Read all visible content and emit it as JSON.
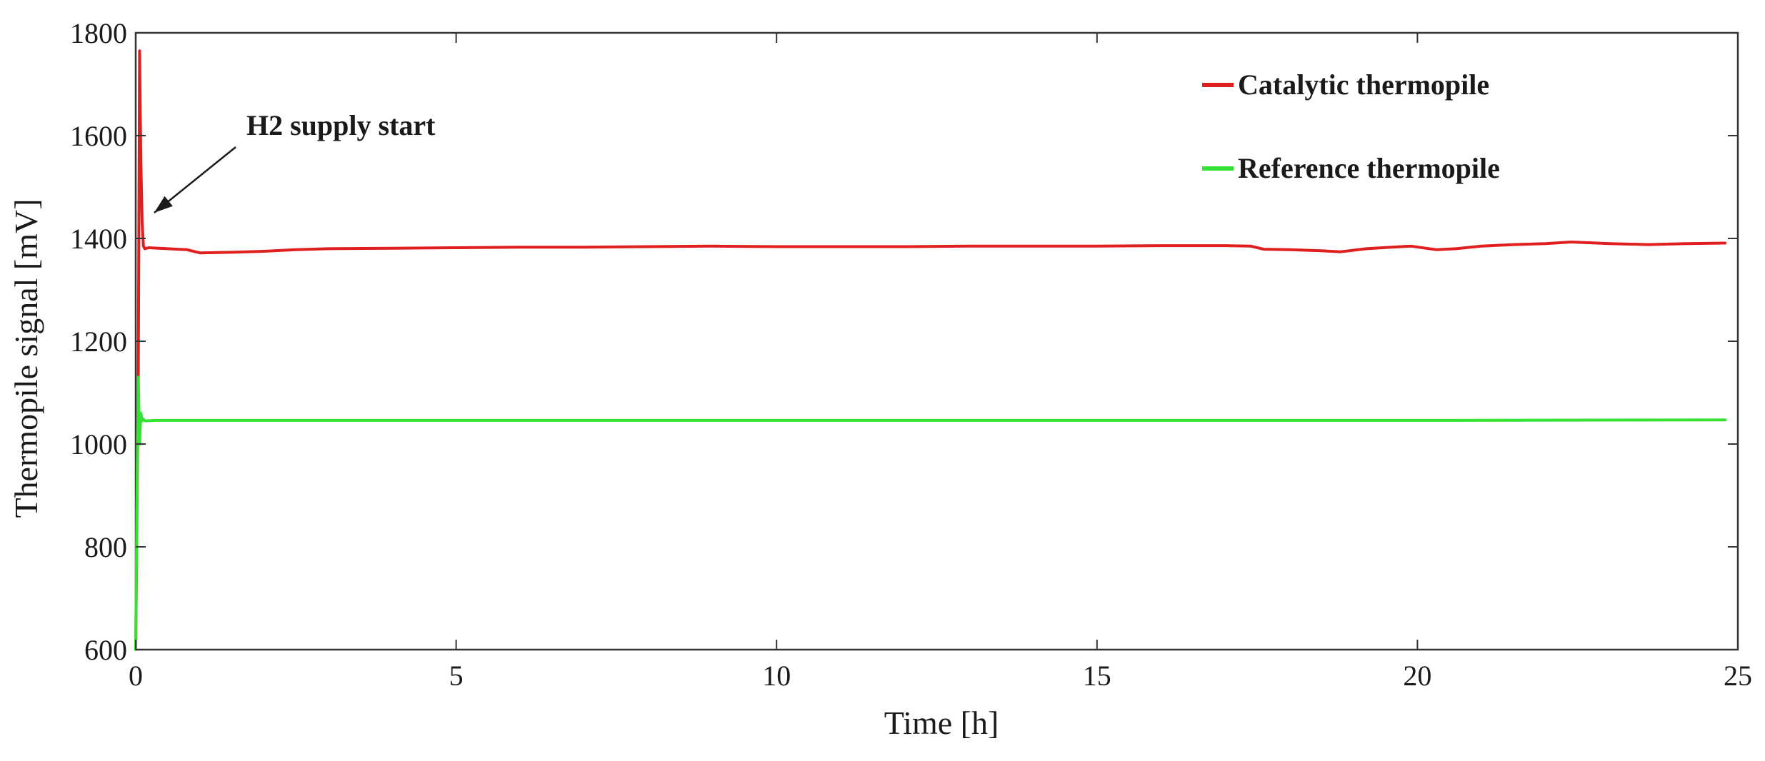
{
  "chart_data": {
    "type": "line",
    "title": "",
    "xlabel": "Time [h]",
    "ylabel": "Thermopile signal [mV]",
    "xlim": [
      0,
      25
    ],
    "ylim": [
      600,
      1800
    ],
    "xticks": [
      0,
      5,
      10,
      15,
      20,
      25
    ],
    "xtick_labels": [
      "0",
      "5",
      "10",
      "15",
      "20",
      "25"
    ],
    "yticks": [
      600,
      800,
      1000,
      1200,
      1400,
      1600,
      1800
    ],
    "ytick_labels": [
      "600",
      "800",
      "1000",
      "1200",
      "1400",
      "1600",
      "1800"
    ],
    "grid": false,
    "legend_position": "top-right",
    "annotation": {
      "text": "H2 supply start",
      "arrow_to": {
        "x": 0.2,
        "y": 1450
      }
    },
    "series": [
      {
        "name": "Catalytic thermopile",
        "color": "#e0201e",
        "x": [
          0,
          0.04,
          0.06,
          0.08,
          0.1,
          0.12,
          0.14,
          0.2,
          0.5,
          0.8,
          1.0,
          1.5,
          2.0,
          2.5,
          3.0,
          4.0,
          5.0,
          6.0,
          7.0,
          8.0,
          9.0,
          10.0,
          11.0,
          12.0,
          13.0,
          14.0,
          15.0,
          16.0,
          17.0,
          17.4,
          17.6,
          18.0,
          18.5,
          18.8,
          19.2,
          19.6,
          19.9,
          20.3,
          20.6,
          21.0,
          21.5,
          22.0,
          22.4,
          23.0,
          23.6,
          24.2,
          24.8
        ],
        "y": [
          600,
          1130,
          1765,
          1550,
          1430,
          1385,
          1380,
          1382,
          1380,
          1378,
          1372,
          1373,
          1375,
          1378,
          1380,
          1381,
          1382,
          1383,
          1383,
          1384,
          1385,
          1384,
          1384,
          1384,
          1385,
          1385,
          1385,
          1386,
          1386,
          1385,
          1379,
          1378,
          1376,
          1374,
          1380,
          1383,
          1385,
          1378,
          1380,
          1385,
          1388,
          1390,
          1393,
          1390,
          1388,
          1390,
          1391
        ]
      },
      {
        "name": "Reference thermopile",
        "color": "#33e233",
        "x": [
          0,
          0.02,
          0.04,
          0.06,
          0.08,
          0.1,
          0.12,
          0.15,
          0.3,
          1.0,
          5.0,
          10.0,
          15.0,
          20.0,
          24.8
        ],
        "y": [
          600,
          900,
          1130,
          1000,
          1060,
          1045,
          1048,
          1045,
          1046,
          1046,
          1046,
          1046,
          1046,
          1046,
          1047
        ]
      }
    ]
  }
}
